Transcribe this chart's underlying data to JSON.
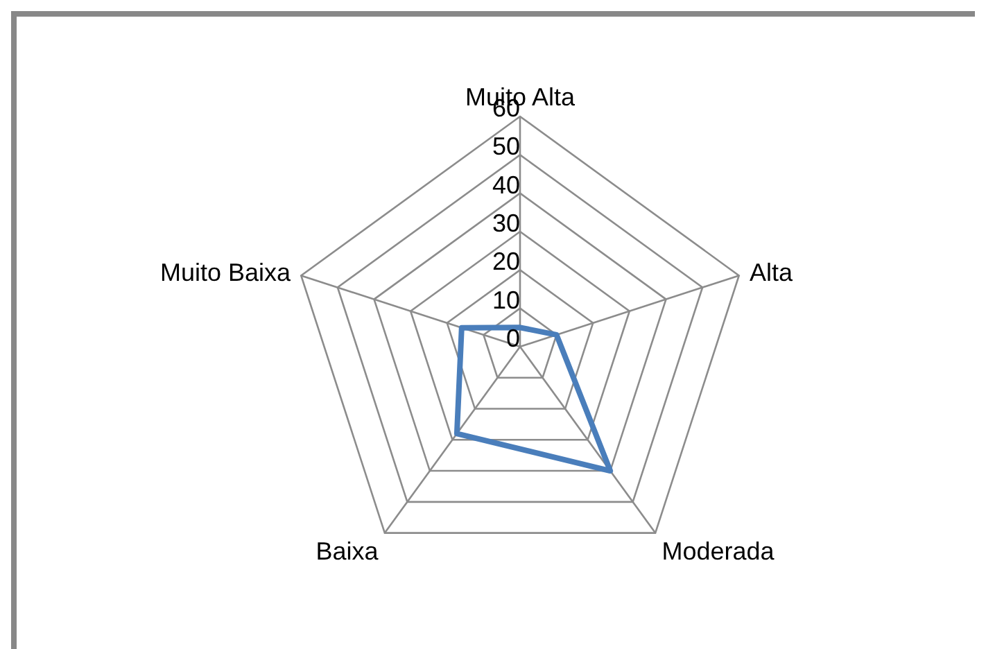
{
  "chart_data": {
    "type": "radar",
    "categories": [
      "Muito Alta",
      "Alta",
      "Moderada",
      "Baixa",
      "Muito Baixa"
    ],
    "series": [
      {
        "color": "#4a7ebb",
        "values": [
          5,
          10,
          40,
          28,
          16
        ]
      }
    ],
    "ylim": [
      0,
      60
    ],
    "yticks": [
      0,
      10,
      20,
      30,
      40,
      50,
      60
    ],
    "grid": true,
    "legend": false,
    "marker": "none"
  }
}
